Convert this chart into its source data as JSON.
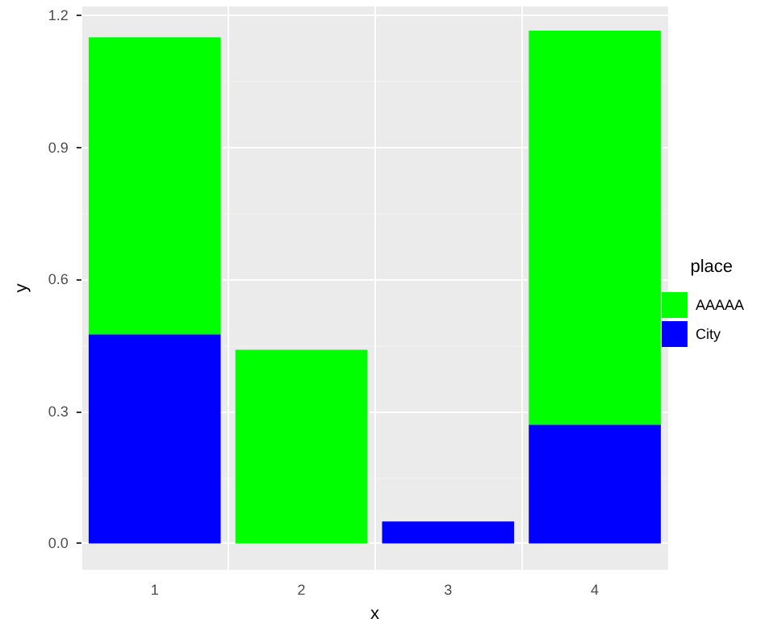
{
  "chart_data": {
    "type": "bar",
    "xlabel": "x",
    "ylabel": "y",
    "legend_title": "place",
    "categories": [
      "1",
      "2",
      "3",
      "4"
    ],
    "stacked": true,
    "series": [
      {
        "name": "City",
        "color": "#0000ff",
        "values": [
          0.475,
          0,
          0.05,
          0.27
        ]
      },
      {
        "name": "AAAAA",
        "color": "#00ff00",
        "values": [
          0.675,
          0.44,
          0,
          0.895
        ]
      }
    ],
    "ylim": [
      -0.06,
      1.22
    ],
    "yticks": [
      {
        "value": 0,
        "label": "0.0"
      },
      {
        "value": 0.3,
        "label": "0.3"
      },
      {
        "value": 0.6,
        "label": "0.6"
      },
      {
        "value": 0.9,
        "label": "0.9"
      },
      {
        "value": 1.2,
        "label": "1.2"
      }
    ],
    "grid": true,
    "legend": "right"
  }
}
